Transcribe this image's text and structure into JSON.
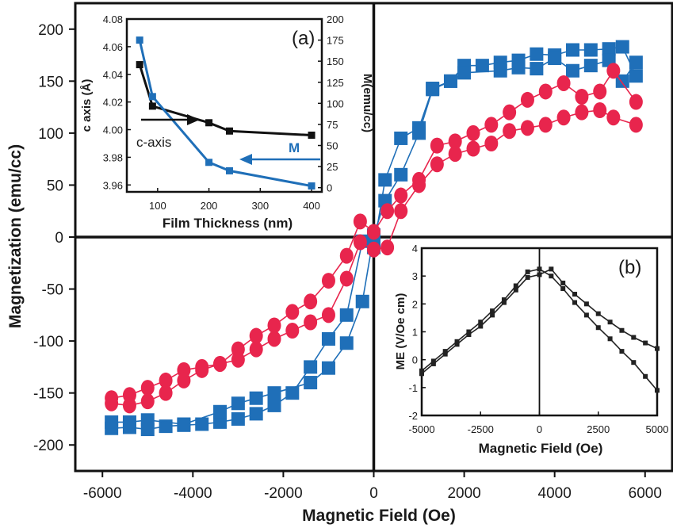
{
  "chart_data": [
    {
      "type": "scatter",
      "xlabel": "Magnetic Field (Oe)",
      "ylabel": "Magnetization (emu/cc)",
      "xlim": [
        -6600,
        6600
      ],
      "ylim": [
        -225,
        225
      ],
      "xticks": [
        "-6000",
        "-4000",
        "-2000",
        "0",
        "2000",
        "4000",
        "6000"
      ],
      "yticks": [
        "200",
        "150",
        "100",
        "50",
        "0",
        "-50",
        "-100",
        "-150",
        "-200"
      ],
      "series": [
        {
          "color": "#1f6fb8",
          "marker": "square",
          "points": [
            [
              -5800,
              -184
            ],
            [
              -5400,
              -183
            ],
            [
              -5000,
              -185
            ],
            [
              -4600,
              -182
            ],
            [
              -4200,
              -181
            ],
            [
              -3800,
              -180
            ],
            [
              -3400,
              -178
            ],
            [
              -3000,
              -175
            ],
            [
              -2600,
              -170
            ],
            [
              -2200,
              -162
            ],
            [
              -1800,
              -150
            ],
            [
              -1400,
              -125
            ],
            [
              -1000,
              -98
            ],
            [
              -600,
              -75
            ],
            [
              -250,
              -4
            ],
            [
              0,
              -10
            ],
            [
              250,
              55
            ],
            [
              600,
              95
            ],
            [
              1000,
              105
            ],
            [
              1300,
              143
            ],
            [
              1700,
              150
            ],
            [
              2000,
              165
            ],
            [
              2400,
              165
            ],
            [
              2800,
              168
            ],
            [
              3200,
              170
            ],
            [
              3600,
              176
            ],
            [
              4000,
              175
            ],
            [
              4400,
              180
            ],
            [
              4800,
              180
            ],
            [
              5200,
              181
            ],
            [
              5500,
              183
            ],
            [
              5800,
              155
            ]
          ]
        },
        {
          "color": "#1f6fb8",
          "marker": "square",
          "points": [
            [
              -5800,
              -178
            ],
            [
              -5400,
              -178
            ],
            [
              -5000,
              -176
            ],
            [
              -4200,
              -180
            ],
            [
              -3400,
              -168
            ],
            [
              -3000,
              -160
            ],
            [
              -2600,
              -155
            ],
            [
              -2200,
              -150
            ],
            [
              -1400,
              -140
            ],
            [
              -1000,
              -126
            ],
            [
              -600,
              -102
            ],
            [
              -250,
              -62
            ],
            [
              0,
              2
            ],
            [
              250,
              35
            ],
            [
              600,
              60
            ],
            [
              1000,
              100
            ],
            [
              1300,
              142
            ],
            [
              1700,
              150
            ],
            [
              2000,
              158
            ],
            [
              2800,
              160
            ],
            [
              3200,
              163
            ],
            [
              3600,
              162
            ],
            [
              4000,
              172
            ],
            [
              4400,
              160
            ],
            [
              4800,
              165
            ],
            [
              5200,
              170
            ],
            [
              5500,
              150
            ],
            [
              5800,
              168
            ]
          ]
        },
        {
          "color": "#e8254d",
          "marker": "circle",
          "points": [
            [
              -5800,
              -155
            ],
            [
              -5400,
              -152
            ],
            [
              -5000,
              -145
            ],
            [
              -4600,
              -138
            ],
            [
              -4200,
              -128
            ],
            [
              -3800,
              -125
            ],
            [
              -3400,
              -122
            ],
            [
              -3000,
              -108
            ],
            [
              -2600,
              -95
            ],
            [
              -2200,
              -85
            ],
            [
              -1800,
              -72
            ],
            [
              -1400,
              -62
            ],
            [
              -1000,
              -42
            ],
            [
              -600,
              -18
            ],
            [
              -300,
              15
            ],
            [
              0,
              5
            ],
            [
              300,
              25
            ],
            [
              600,
              40
            ],
            [
              1000,
              55
            ],
            [
              1400,
              88
            ],
            [
              1800,
              92
            ],
            [
              2200,
              100
            ],
            [
              2600,
              108
            ],
            [
              3000,
              120
            ],
            [
              3400,
              132
            ],
            [
              3800,
              140
            ],
            [
              4200,
              148
            ],
            [
              4600,
              135
            ],
            [
              5000,
              140
            ],
            [
              5300,
              160
            ],
            [
              5800,
              130
            ]
          ]
        },
        {
          "color": "#e8254d",
          "marker": "circle",
          "points": [
            [
              -5800,
              -160
            ],
            [
              -5400,
              -162
            ],
            [
              -5000,
              -158
            ],
            [
              -4600,
              -150
            ],
            [
              -4200,
              -138
            ],
            [
              -3800,
              -128
            ],
            [
              -3400,
              -122
            ],
            [
              -3000,
              -118
            ],
            [
              -2600,
              -108
            ],
            [
              -2200,
              -98
            ],
            [
              -1800,
              -90
            ],
            [
              -1400,
              -82
            ],
            [
              -1000,
              -75
            ],
            [
              -600,
              -40
            ],
            [
              -300,
              -5
            ],
            [
              0,
              -12
            ],
            [
              300,
              -10
            ],
            [
              600,
              25
            ],
            [
              1000,
              50
            ],
            [
              1400,
              70
            ],
            [
              1800,
              80
            ],
            [
              2200,
              85
            ],
            [
              2600,
              90
            ],
            [
              3000,
              102
            ],
            [
              3400,
              105
            ],
            [
              3800,
              108
            ],
            [
              4200,
              115
            ],
            [
              4600,
              120
            ],
            [
              5000,
              122
            ],
            [
              5300,
              115
            ],
            [
              5800,
              108
            ]
          ]
        }
      ],
      "insets": [
        {
          "panel_label": "(a)",
          "type": "line",
          "xlabel": "Film Thickness (nm)",
          "ylabel": "c axis (Å)",
          "ylabel2": "M(emu/cc)",
          "xlim": [
            40,
            420
          ],
          "ylim": [
            3.955,
            4.08
          ],
          "ylim2": [
            -5,
            200
          ],
          "xticks": [
            "100",
            "200",
            "300",
            "400"
          ],
          "yticks": [
            "4.08",
            "4.06",
            "4.04",
            "4.02",
            "4.00",
            "3.98",
            "3.96"
          ],
          "yticks2": [
            "200",
            "175",
            "150",
            "125",
            "100",
            "75",
            "50",
            "25",
            "0"
          ],
          "annotations": [
            "c-axis",
            "M"
          ],
          "series": [
            {
              "color": "#111111",
              "marker": "square",
              "axis": "left",
              "points": [
                [
                  65,
                  4.047
                ],
                [
                  90,
                  4.017
                ],
                [
                  200,
                  4.005
                ],
                [
                  240,
                  3.999
                ],
                [
                  400,
                  3.996
                ]
              ]
            },
            {
              "color": "#1f6fb8",
              "marker": "square",
              "axis": "right",
              "points": [
                [
                  65,
                  175
                ],
                [
                  90,
                  108
                ],
                [
                  200,
                  30
                ],
                [
                  240,
                  20
                ],
                [
                  400,
                  2
                ]
              ]
            }
          ]
        },
        {
          "panel_label": "(b)",
          "type": "line",
          "xlabel": "Magnetic Field (Oe)",
          "ylabel": "ME (V/Oe cm)",
          "xlim": [
            -5000,
            5000
          ],
          "ylim": [
            -2,
            4
          ],
          "xticks": [
            "-5000",
            "-2500",
            "0",
            "2500",
            "5000"
          ],
          "yticks": [
            "4",
            "3",
            "2",
            "1",
            "0",
            "-1",
            "-2"
          ],
          "series": [
            {
              "color": "#222222",
              "marker": "square",
              "points": [
                [
                  -5000,
                  -0.4
                ],
                [
                  -4500,
                  -0.05
                ],
                [
                  -4000,
                  0.3
                ],
                [
                  -3500,
                  0.65
                ],
                [
                  -3000,
                  1.0
                ],
                [
                  -2500,
                  1.35
                ],
                [
                  -2000,
                  1.75
                ],
                [
                  -1500,
                  2.15
                ],
                [
                  -1000,
                  2.65
                ],
                [
                  -500,
                  3.15
                ],
                [
                  0,
                  3.25
                ],
                [
                  500,
                  3.0
                ],
                [
                  1000,
                  2.55
                ],
                [
                  1500,
                  2.05
                ],
                [
                  2000,
                  1.6
                ],
                [
                  2500,
                  1.15
                ],
                [
                  3000,
                  0.75
                ],
                [
                  3500,
                  0.3
                ],
                [
                  4000,
                  -0.1
                ],
                [
                  4500,
                  -0.6
                ],
                [
                  5000,
                  -1.1
                ]
              ]
            },
            {
              "color": "#222222",
              "marker": "square",
              "points": [
                [
                  -5000,
                  -0.5
                ],
                [
                  -4500,
                  -0.15
                ],
                [
                  -4000,
                  0.2
                ],
                [
                  -3500,
                  0.55
                ],
                [
                  -3000,
                  0.9
                ],
                [
                  -2500,
                  1.2
                ],
                [
                  -2000,
                  1.6
                ],
                [
                  -1500,
                  2.05
                ],
                [
                  -1000,
                  2.5
                ],
                [
                  -500,
                  2.95
                ],
                [
                  0,
                  3.05
                ],
                [
                  500,
                  3.25
                ],
                [
                  1000,
                  2.75
                ],
                [
                  1500,
                  2.35
                ],
                [
                  2000,
                  2.0
                ],
                [
                  2500,
                  1.65
                ],
                [
                  3000,
                  1.35
                ],
                [
                  3500,
                  1.05
                ],
                [
                  4000,
                  0.8
                ],
                [
                  4500,
                  0.6
                ],
                [
                  5000,
                  0.4
                ]
              ]
            }
          ]
        }
      ]
    }
  ]
}
